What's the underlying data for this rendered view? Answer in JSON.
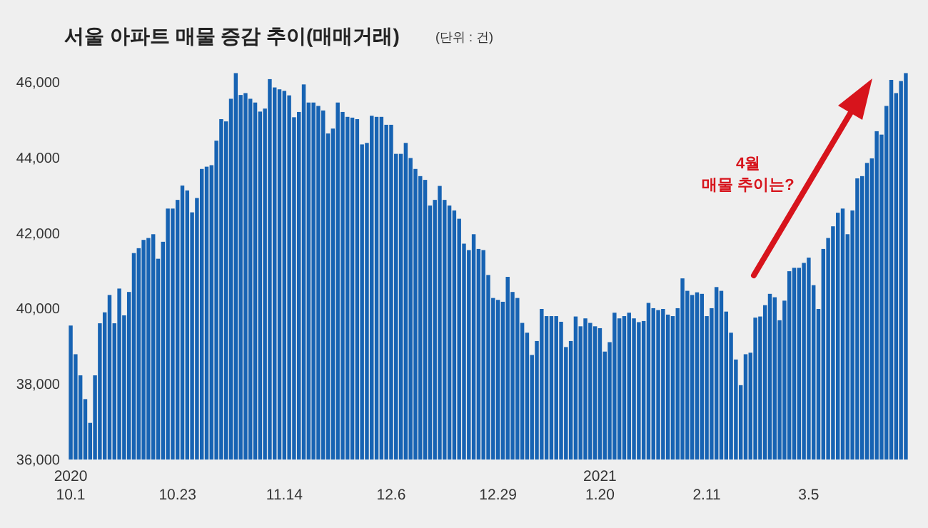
{
  "chart_data": {
    "type": "bar",
    "title": "서울 아파트 매물 증감 추이(매매거래)",
    "subtitle": "(단위 : 건)",
    "categories": [
      "2020\n10.1",
      null,
      null,
      null,
      null,
      null,
      null,
      null,
      null,
      null,
      null,
      null,
      null,
      null,
      null,
      null,
      null,
      null,
      null,
      null,
      null,
      null,
      "10.23",
      null,
      null,
      null,
      null,
      null,
      null,
      null,
      null,
      null,
      null,
      null,
      null,
      null,
      null,
      null,
      null,
      null,
      null,
      null,
      null,
      null,
      "11.14",
      null,
      null,
      null,
      null,
      null,
      null,
      null,
      null,
      null,
      null,
      null,
      null,
      null,
      null,
      null,
      null,
      null,
      null,
      null,
      null,
      null,
      "12.6",
      null,
      null,
      null,
      null,
      null,
      null,
      null,
      null,
      null,
      null,
      null,
      null,
      null,
      null,
      null,
      null,
      null,
      null,
      null,
      null,
      null,
      "12.29",
      null,
      null,
      null,
      null,
      null,
      null,
      null,
      null,
      null,
      null,
      null,
      null,
      null,
      null,
      null,
      null,
      null,
      null,
      null,
      null,
      "2021\n1.20",
      null,
      null,
      null,
      null,
      null,
      null,
      null,
      null,
      null,
      null,
      null,
      null,
      null,
      null,
      null,
      null,
      null,
      null,
      null,
      null,
      null,
      "2.11",
      null,
      null,
      null,
      null,
      null,
      null,
      null,
      null,
      null,
      null,
      null,
      null,
      null,
      null,
      null,
      null,
      null,
      null,
      null,
      null,
      "3.5",
      null,
      null,
      null,
      null,
      null,
      null,
      null,
      null,
      null,
      null,
      null,
      null,
      null,
      null,
      null,
      null,
      null,
      null,
      null,
      null
    ],
    "values": [
      39550,
      38790,
      38230,
      37600,
      36970,
      38230,
      39610,
      39900,
      40360,
      39610,
      40530,
      39820,
      40440,
      41470,
      41600,
      41820,
      41870,
      41970,
      41320,
      41770,
      42650,
      42650,
      42880,
      43260,
      43130,
      42550,
      42930,
      43700,
      43760,
      43800,
      44450,
      45020,
      44960,
      45560,
      46240,
      45660,
      45710,
      45560,
      45460,
      45220,
      45300,
      46080,
      45860,
      45810,
      45770,
      45650,
      45070,
      45210,
      45940,
      45460,
      45460,
      45370,
      45250,
      44640,
      44770,
      45460,
      45210,
      45080,
      45060,
      45020,
      44350,
      44390,
      45110,
      45080,
      45080,
      44870,
      44870,
      44100,
      44100,
      44390,
      43990,
      43700,
      43510,
      43410,
      42730,
      42880,
      43250,
      42880,
      42730,
      42600,
      42380,
      41720,
      41550,
      41970,
      41580,
      41550,
      40890,
      40280,
      40230,
      40180,
      40840,
      40440,
      40280,
      39620,
      39360,
      38770,
      39140,
      39990,
      39800,
      39800,
      39800,
      39650,
      38980,
      39140,
      39790,
      39530,
      39740,
      39620,
      39530,
      39480,
      38860,
      39110,
      39890,
      39740,
      39800,
      39890,
      39740,
      39640,
      39670,
      40150,
      40010,
      39960,
      39990,
      39840,
      39800,
      40010,
      40800,
      40470,
      40360,
      40430,
      40390,
      39800,
      40010,
      40570,
      40470,
      39920,
      39360,
      38650,
      37970,
      38790,
      38830,
      39760,
      39790,
      40090,
      40390,
      40300,
      39690,
      40210,
      40990,
      41080,
      41080,
      41210,
      41350,
      40620,
      39990,
      41580,
      41870,
      42180,
      42540,
      42650,
      41970,
      42600,
      43450,
      43510,
      43860,
      43980,
      44700,
      44610,
      45370,
      46060,
      45710,
      46030,
      46240
    ],
    "color": "#1763b3",
    "ylim": [
      36000,
      46400
    ],
    "yticks": [
      {
        "value": 36000,
        "label": "36,000"
      },
      {
        "value": 38000,
        "label": "38,000"
      },
      {
        "value": 40000,
        "label": "40,000"
      },
      {
        "value": 42000,
        "label": "42,000"
      },
      {
        "value": 44000,
        "label": "44,000"
      },
      {
        "value": 46000,
        "label": "46,000"
      }
    ],
    "annotations": [
      "4월\n매물 추이는?"
    ],
    "grid": false
  }
}
